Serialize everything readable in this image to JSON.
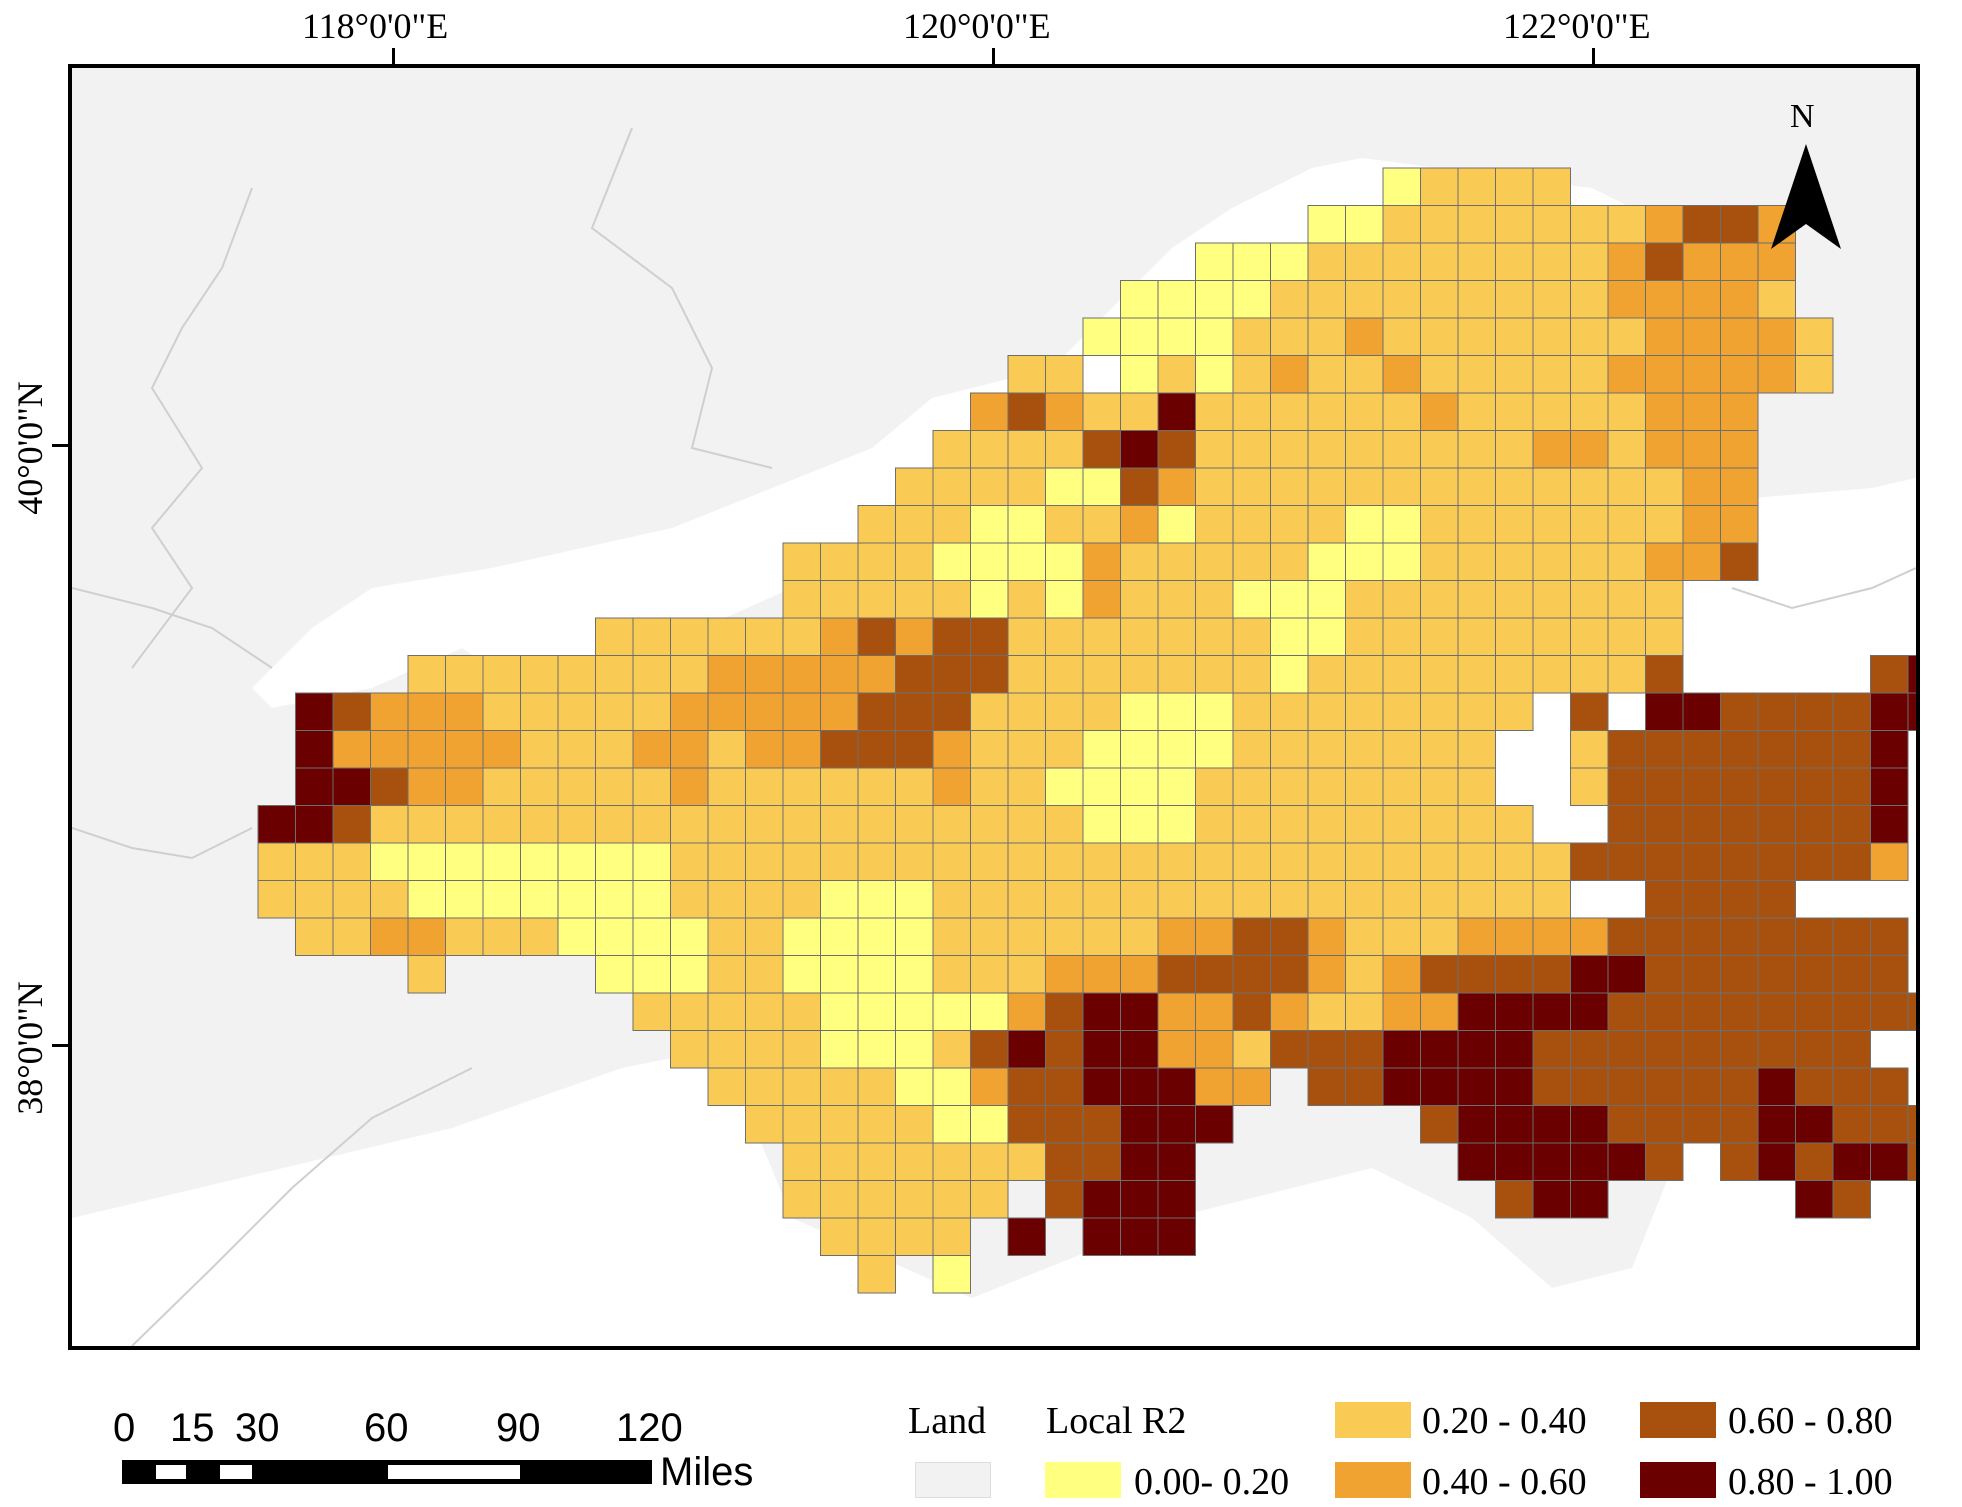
{
  "map": {
    "x_ticks": [
      "118°0'0\"E",
      "120°0'0\"E",
      "122°0'0\"E"
    ],
    "y_ticks": [
      "40°0'0\"N",
      "38°0'0\"N"
    ],
    "north_label": "N"
  },
  "scale_bar": {
    "ticks": [
      "0",
      "15",
      "30",
      "60",
      "90",
      "120"
    ],
    "unit": "Miles"
  },
  "legend": {
    "land_label": "Land",
    "title": "Local R2",
    "classes": [
      {
        "label": "0.00- 0.20",
        "color": "#FFFF80"
      },
      {
        "label": "0.20 - 0.40",
        "color": "#F9CB55"
      },
      {
        "label": "0.40 - 0.60",
        "color": "#F0A330"
      },
      {
        "label": "0.60 - 0.80",
        "color": "#A8510F"
      },
      {
        "label": "0.80 - 1.00",
        "color": "#6B0000"
      }
    ],
    "land_color": "#F2F2F2"
  }
}
